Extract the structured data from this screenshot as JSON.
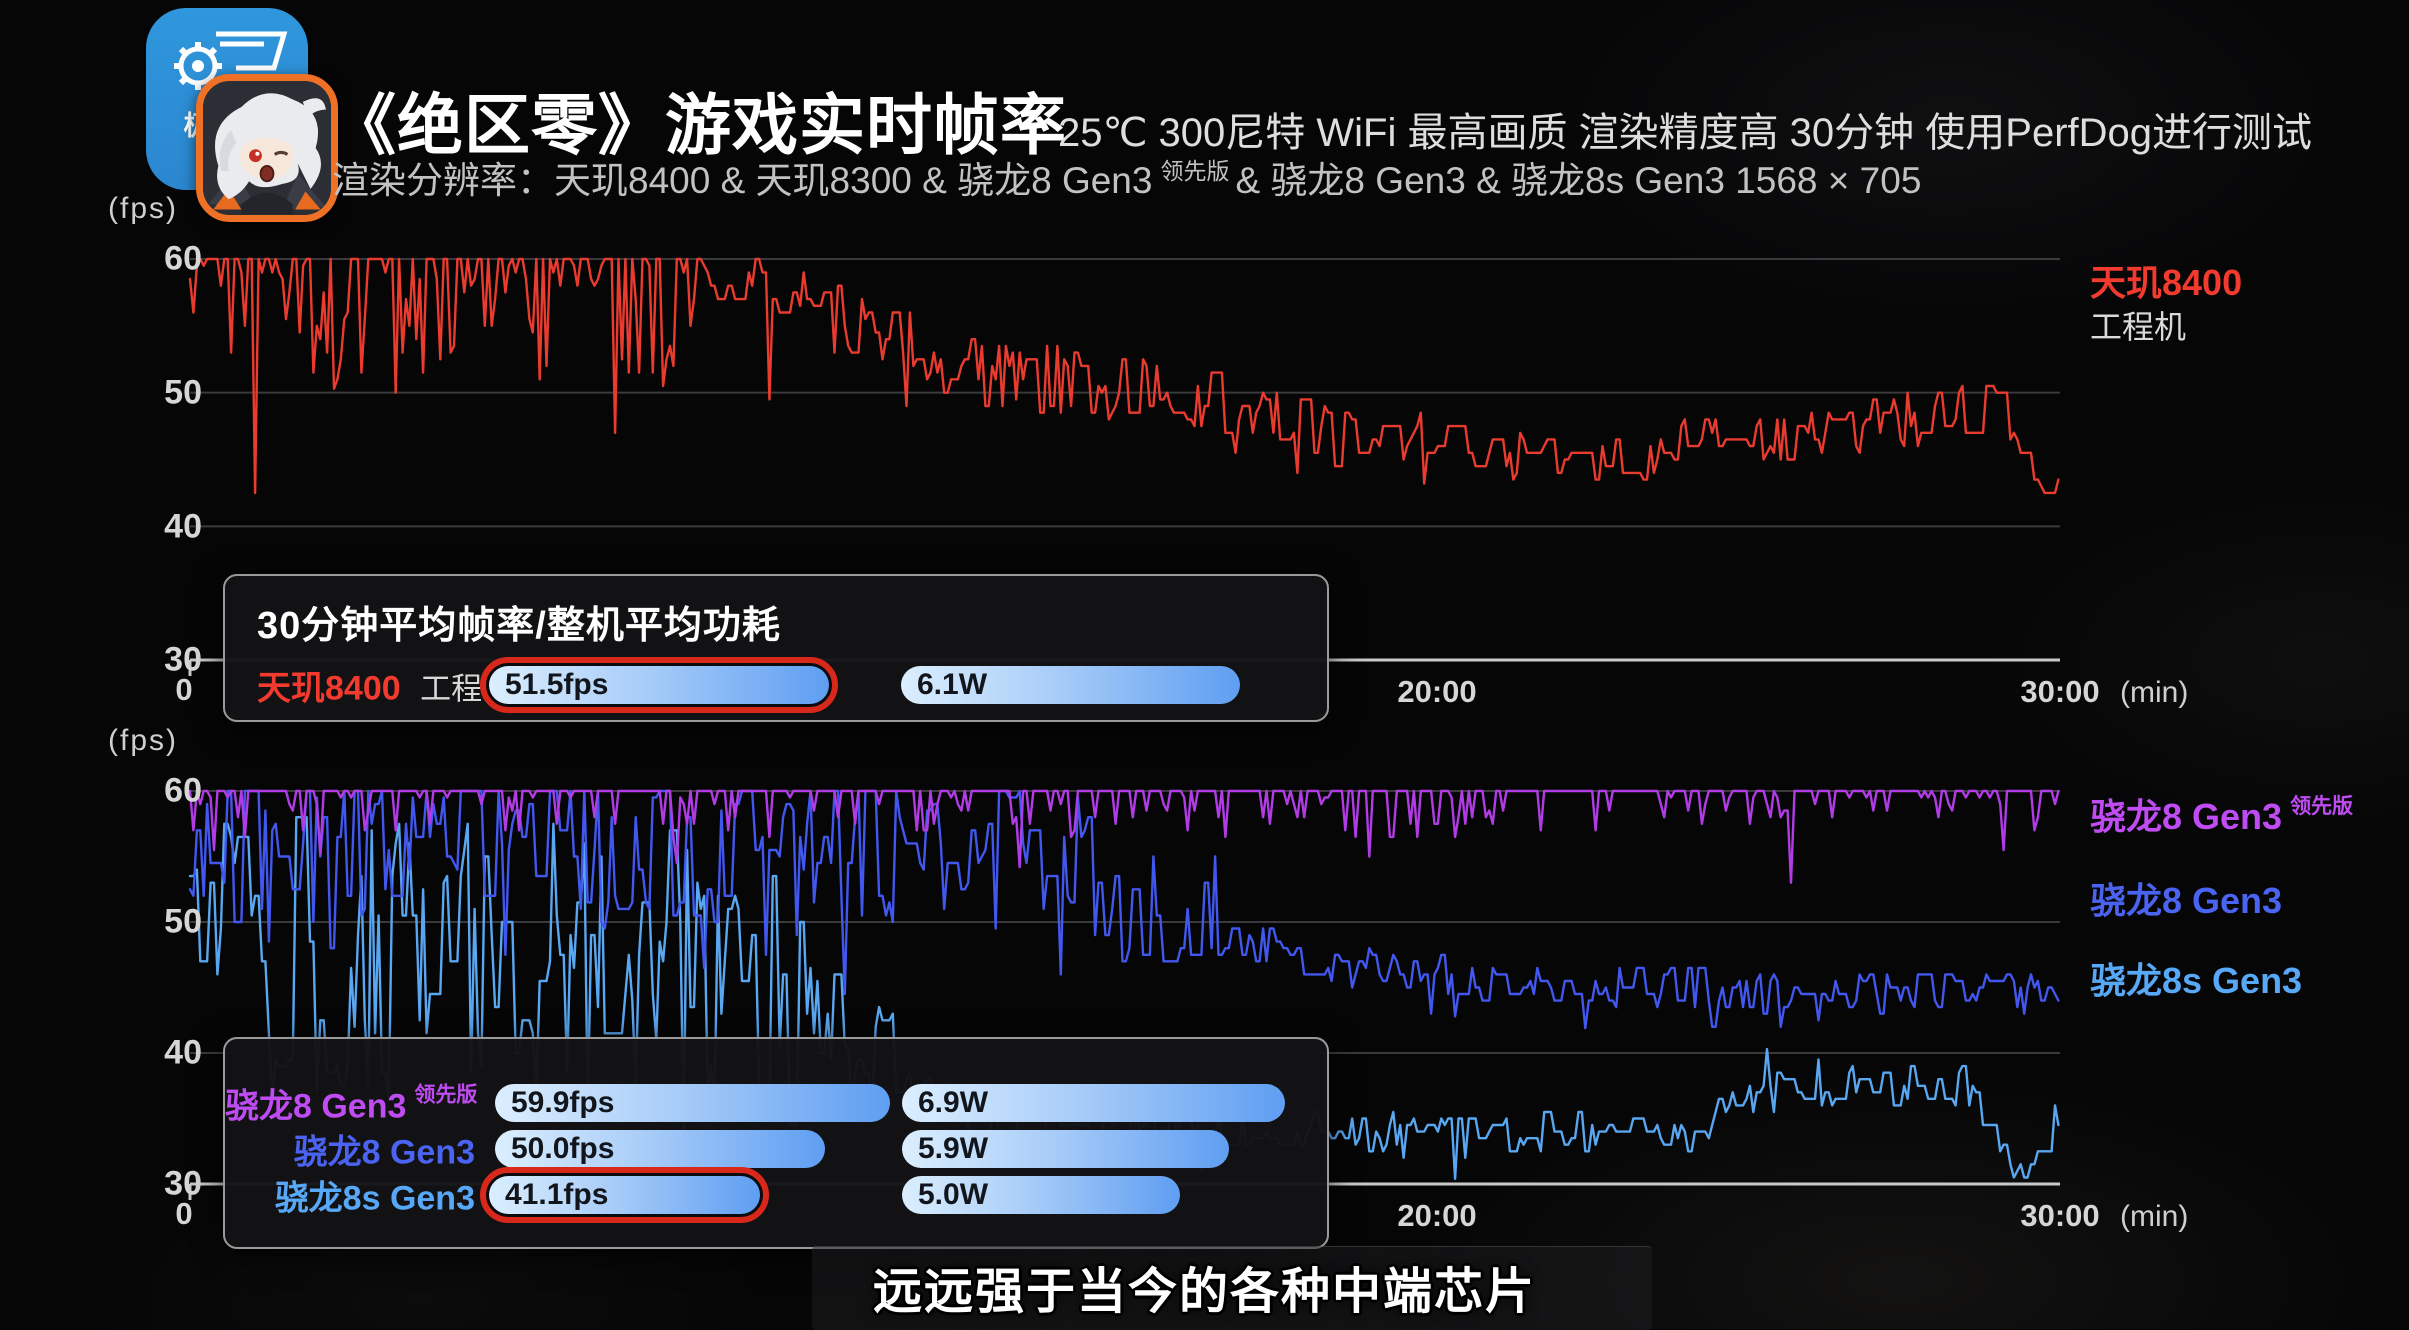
{
  "header": {
    "badge_text": "极客湾",
    "title": "《绝区零》游戏实时帧率",
    "conditions": "25℃ 300尼特 WiFi 最高画质 渲染精度高 30分钟 使用PerfDog进行测试",
    "resolution_prefix": "渲染分辨率：天玑8400 & 天玑8300 & 骁龙8 Gen3",
    "resolution_sup": "领先版",
    "resolution_suffix": "& 骁龙8 Gen3 & 骁龙8s Gen3 1568 × 705"
  },
  "top_chart": {
    "y_unit": "(fps)",
    "x_unit": "(min)",
    "y_ticks": [
      "60",
      "50",
      "40",
      "30"
    ],
    "x_origin": "0",
    "x_tick_20": "20:00",
    "x_tick_30": "30:00",
    "legend": {
      "name": "天玑8400",
      "sub": "工程机"
    }
  },
  "bottom_chart": {
    "y_unit": "(fps)",
    "x_unit": "(min)",
    "y_ticks": [
      "60",
      "50",
      "40",
      "30"
    ],
    "x_origin": "0",
    "x_tick_20": "20:00",
    "x_tick_30": "30:00",
    "legends": [
      {
        "name": "骁龙8 Gen3",
        "sup": "领先版"
      },
      {
        "name": "骁龙8 Gen3",
        "sup": ""
      },
      {
        "name": "骁龙8s Gen3",
        "sup": ""
      }
    ]
  },
  "overlay1": {
    "title": "30分钟平均帧率/整机平均功耗",
    "row": {
      "chip": "天玑8400",
      "chip_sub": "工程机",
      "fps_label": "51.5fps",
      "fps_value": 51.5,
      "fps_highlight": true,
      "watt_label": "6.1W",
      "watt_value": 6.1
    }
  },
  "overlay2": {
    "rows": [
      {
        "chip": "骁龙8 Gen3",
        "sup": "领先版",
        "fps_label": "59.9fps",
        "fps_value": 59.9,
        "fps_highlight": false,
        "watt_label": "6.9W",
        "watt_value": 6.9
      },
      {
        "chip": "骁龙8 Gen3",
        "sup": "",
        "fps_label": "50.0fps",
        "fps_value": 50.0,
        "fps_highlight": false,
        "watt_label": "5.9W",
        "watt_value": 5.9
      },
      {
        "chip": "骁龙8s Gen3",
        "sup": "",
        "fps_label": "41.1fps",
        "fps_value": 41.1,
        "fps_highlight": true,
        "watt_label": "5.0W",
        "watt_value": 5.0
      }
    ]
  },
  "caption": "远远强于当今的各种中端芯片",
  "colors": {
    "dimensity_red": "#ea3b2f",
    "sd8g3_le_purple": "#b13ce6",
    "sd8g3_blue": "#4157ee",
    "sd8sg3_lightblue": "#59a7f0",
    "grid": "#3a3a3d",
    "axis": "#c9c9c9",
    "highlight_ring": "#d8281c",
    "badge_blue": "#2e93d9",
    "avatar_border_orange": "#ee7125"
  },
  "chart_data": [
    {
      "type": "line",
      "title": "《绝区零》实时帧率 — 天玑8400 工程机",
      "xlabel": "(min)",
      "ylabel": "(fps)",
      "x_range_min": [
        0,
        30
      ],
      "y_range_fps": [
        30,
        60
      ],
      "y_ticks": [
        60,
        50,
        40,
        30
      ],
      "gridlines_fps": [
        60,
        50,
        40
      ],
      "x_ticks": [
        {
          "t": 0,
          "label": "0"
        },
        {
          "t": 20,
          "label": "20:00"
        },
        {
          "t": 30,
          "label": "30:00"
        }
      ],
      "legend_position": "right",
      "series": [
        {
          "name": "天玑8400 工程机",
          "color": "#ea3b2f",
          "avg_fps_30min": 51.5,
          "avg_power_w": 6.1,
          "trend_segments": [
            {
              "t0": 0,
              "t1": 8.2,
              "f0": 60,
              "f1": 60,
              "j": 9,
              "p": 0.06,
              "d": 3,
              "hug": 0.42
            },
            {
              "t0": 8.2,
              "t1": 10.3,
              "f0": 59,
              "f1": 56.5,
              "j": 4,
              "p": 0.15,
              "d": 3
            },
            {
              "t0": 10.3,
              "t1": 12.5,
              "f0": 56,
              "f1": 51.5,
              "j": 5,
              "p": 0.12,
              "d": 3
            },
            {
              "t0": 12.5,
              "t1": 16.5,
              "f0": 51.5,
              "f1": 49.5,
              "j": 5.5,
              "p": 0.1,
              "d": 2.5
            },
            {
              "t0": 16.5,
              "t1": 20.5,
              "f0": 48.5,
              "f1": 46,
              "j": 4.5,
              "p": 0.1,
              "d": 2
            },
            {
              "t0": 20.5,
              "t1": 23.5,
              "f0": 45.5,
              "f1": 45,
              "j": 3.5,
              "p": 0.1,
              "d": 2
            },
            {
              "t0": 23.5,
              "t1": 27,
              "f0": 46.5,
              "f1": 47.5,
              "j": 4,
              "p": 0.08,
              "d": 2
            },
            {
              "t0": 27,
              "t1": 29.2,
              "f0": 48,
              "f1": 48.5,
              "j": 4,
              "p": 0.06,
              "d": 2
            },
            {
              "t0": 29.2,
              "t1": 29.7,
              "f0": 47,
              "f1": 42.5,
              "j": 1.5,
              "p": 0,
              "d": 0
            },
            {
              "t0": 29.7,
              "t1": 30,
              "f0": 42.5,
              "f1": 44,
              "j": 1.5,
              "p": 0,
              "d": 0
            }
          ],
          "dip_events": [
            [
              1.05,
              42.5
            ],
            [
              2.3,
              50.3
            ],
            [
              3.3,
              50.0
            ],
            [
              5.6,
              51
            ],
            [
              6.8,
              47
            ],
            [
              7.6,
              50.5
            ],
            [
              9.3,
              49.5
            ],
            [
              19.8,
              43.2
            ]
          ]
        }
      ]
    },
    {
      "type": "line",
      "title": "《绝区零》实时帧率 — 骁龙8 Gen3 领先版 / 骁龙8 Gen3 / 骁龙8s Gen3",
      "xlabel": "(min)",
      "ylabel": "(fps)",
      "x_range_min": [
        0,
        30
      ],
      "y_range_fps": [
        30,
        60
      ],
      "y_ticks": [
        60,
        50,
        40,
        30
      ],
      "gridlines_fps": [
        60,
        50,
        40
      ],
      "x_ticks": [
        {
          "t": 0,
          "label": "0"
        },
        {
          "t": 20,
          "label": "20:00"
        },
        {
          "t": 30,
          "label": "30:00"
        }
      ],
      "legend_position": "right",
      "series": [
        {
          "name": "骁龙8 Gen3 领先版",
          "color": "#b13ce6",
          "avg_fps_30min": 59.9,
          "avg_power_w": 6.9,
          "trend_segments": [
            {
              "t0": 0,
              "t1": 30,
              "f0": 60,
              "f1": 60,
              "j": 3.5,
              "p": 0.045,
              "d": 2.5,
              "hug": 0.7
            }
          ],
          "dip_events": [
            [
              0.4,
              55.5
            ],
            [
              2.1,
              55.2
            ],
            [
              7.8,
              54.5
            ],
            [
              13.3,
              54.2
            ],
            [
              18.9,
              55
            ],
            [
              25.7,
              53
            ],
            [
              29.1,
              55.5
            ]
          ]
        },
        {
          "name": "骁龙8 Gen3",
          "color": "#4157ee",
          "avg_fps_30min": 50.0,
          "avg_power_w": 5.9,
          "trend_segments": [
            {
              "t0": 0,
              "t1": 11,
              "f0": 56.5,
              "f1": 56,
              "j": 13,
              "p": 0.15,
              "d": 5
            },
            {
              "t0": 11,
              "t1": 14.5,
              "f0": 55.5,
              "f1": 54,
              "j": 13,
              "p": 0.12,
              "d": 4
            },
            {
              "t0": 14.5,
              "t1": 16.5,
              "f0": 52.5,
              "f1": 50,
              "j": 10,
              "p": 0.1,
              "d": 3
            },
            {
              "t0": 16.5,
              "t1": 18,
              "f0": 49,
              "f1": 47,
              "j": 5,
              "p": 0.1,
              "d": 2
            },
            {
              "t0": 18,
              "t1": 20.5,
              "f0": 46.8,
              "f1": 46,
              "j": 3,
              "p": 0.08,
              "d": 2
            },
            {
              "t0": 20.5,
              "t1": 29.5,
              "f0": 45.3,
              "f1": 44.6,
              "j": 3,
              "p": 0.07,
              "d": 2.5
            },
            {
              "t0": 29.5,
              "t1": 30,
              "f0": 45.5,
              "f1": 43.5,
              "j": 2,
              "p": 0,
              "d": 0
            }
          ],
          "dip_events": [
            [
              20.3,
              42.8
            ],
            [
              22.4,
              41.9
            ],
            [
              26.1,
              42.5
            ]
          ]
        },
        {
          "name": "骁龙8s Gen3",
          "color": "#59a7f0",
          "avg_fps_30min": 41.1,
          "avg_power_w": 5.0,
          "trend_segments": [
            {
              "t0": 0,
              "t1": 1.2,
              "f0": 50,
              "f1": 48,
              "j": 18,
              "p": 0.15,
              "d": 5
            },
            {
              "t0": 1.2,
              "t1": 9.8,
              "f0": 48,
              "f1": 46,
              "j": 22,
              "p": 0.2,
              "d": 6
            },
            {
              "t0": 9.8,
              "t1": 11.3,
              "f0": 43,
              "f1": 39,
              "j": 10,
              "p": 0.1,
              "d": 3
            },
            {
              "t0": 11.3,
              "t1": 12.8,
              "f0": 38,
              "f1": 34.5,
              "j": 3,
              "p": 0,
              "d": 0
            },
            {
              "t0": 12.8,
              "t1": 24.3,
              "f0": 34.2,
              "f1": 34,
              "j": 3,
              "p": 0.08,
              "d": 2
            },
            {
              "t0": 24.3,
              "t1": 25.4,
              "f0": 34.5,
              "f1": 38,
              "j": 3,
              "p": 0,
              "d": 0
            },
            {
              "t0": 25.4,
              "t1": 28.6,
              "f0": 37.8,
              "f1": 37.2,
              "j": 3.5,
              "p": 0.06,
              "d": 1.5
            },
            {
              "t0": 28.6,
              "t1": 29.4,
              "f0": 36.5,
              "f1": 30.6,
              "j": 2,
              "p": 0,
              "d": 0
            },
            {
              "t0": 29.4,
              "t1": 30,
              "f0": 30.6,
              "f1": 35.5,
              "j": 2,
              "p": 0,
              "d": 0
            }
          ],
          "dip_events": [
            [
              16.2,
              31
            ],
            [
              20.3,
              30.4
            ],
            [
              25.3,
              40.3
            ]
          ]
        }
      ]
    }
  ]
}
